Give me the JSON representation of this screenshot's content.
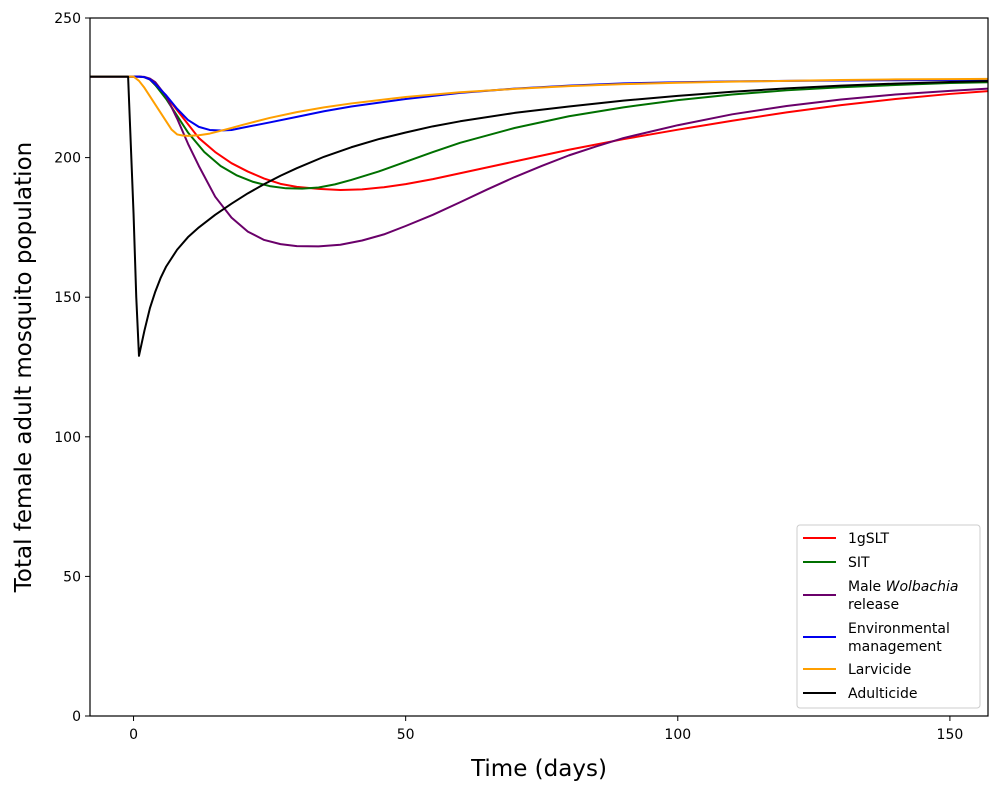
{
  "chart_data": {
    "type": "line",
    "title": "",
    "xlabel": "Time (days)",
    "ylabel": "Total female adult mosquito population",
    "xlim": [
      -8,
      157
    ],
    "ylim": [
      0,
      250
    ],
    "xticks": [
      0,
      50,
      100,
      150
    ],
    "yticks": [
      0,
      50,
      100,
      150,
      200,
      250
    ],
    "grid": false,
    "legend_position": "bottom-right",
    "series": [
      {
        "name": "1gSLT",
        "color": "#ff0000",
        "points": [
          [
            -8,
            229
          ],
          [
            0,
            229
          ],
          [
            1,
            229
          ],
          [
            2,
            228.8
          ],
          [
            3,
            228
          ],
          [
            4,
            226
          ],
          [
            6,
            222
          ],
          [
            8,
            217
          ],
          [
            10,
            212
          ],
          [
            12,
            207
          ],
          [
            15,
            202
          ],
          [
            18,
            198
          ],
          [
            21,
            195
          ],
          [
            24,
            192.5
          ],
          [
            27,
            190.6
          ],
          [
            30,
            189.5
          ],
          [
            34,
            188.8
          ],
          [
            38,
            188.4
          ],
          [
            42,
            188.6
          ],
          [
            46,
            189.4
          ],
          [
            50,
            190.5
          ],
          [
            55,
            192.3
          ],
          [
            60,
            194.4
          ],
          [
            65,
            196.5
          ],
          [
            70,
            198.6
          ],
          [
            80,
            202.8
          ],
          [
            90,
            206.6
          ],
          [
            100,
            210
          ],
          [
            110,
            213.2
          ],
          [
            120,
            216.2
          ],
          [
            130,
            218.8
          ],
          [
            140,
            221
          ],
          [
            150,
            222.8
          ],
          [
            157,
            223.8
          ]
        ]
      },
      {
        "name": "SIT",
        "color": "#007000",
        "points": [
          [
            -8,
            229
          ],
          [
            0,
            229
          ],
          [
            1,
            229
          ],
          [
            2,
            228.8
          ],
          [
            3,
            228
          ],
          [
            4,
            226
          ],
          [
            6,
            221
          ],
          [
            8,
            215
          ],
          [
            10,
            209
          ],
          [
            13,
            202
          ],
          [
            16,
            197
          ],
          [
            19,
            193.6
          ],
          [
            22,
            191.3
          ],
          [
            25,
            189.8
          ],
          [
            28,
            189
          ],
          [
            31,
            188.9
          ],
          [
            34,
            189.3
          ],
          [
            37,
            190.4
          ],
          [
            40,
            192
          ],
          [
            45,
            195
          ],
          [
            50,
            198.5
          ],
          [
            55,
            202
          ],
          [
            60,
            205.3
          ],
          [
            70,
            210.6
          ],
          [
            80,
            214.8
          ],
          [
            90,
            218
          ],
          [
            100,
            220.6
          ],
          [
            110,
            222.6
          ],
          [
            120,
            224.1
          ],
          [
            130,
            225.2
          ],
          [
            140,
            226
          ],
          [
            150,
            226.7
          ],
          [
            157,
            227
          ]
        ]
      },
      {
        "name": "Male Wolbachia release",
        "name_plain": "Male ",
        "name_italic": "Wolbachia",
        "name_line2": "release",
        "color": "#6a006a",
        "points": [
          [
            -8,
            229
          ],
          [
            0,
            229
          ],
          [
            1,
            229
          ],
          [
            2,
            228.9
          ],
          [
            3,
            228.3
          ],
          [
            4,
            227
          ],
          [
            6,
            222
          ],
          [
            8,
            214
          ],
          [
            10,
            205
          ],
          [
            12,
            197
          ],
          [
            15,
            186
          ],
          [
            18,
            178.5
          ],
          [
            21,
            173.5
          ],
          [
            24,
            170.5
          ],
          [
            27,
            169
          ],
          [
            30,
            168.3
          ],
          [
            34,
            168.2
          ],
          [
            38,
            168.8
          ],
          [
            42,
            170.3
          ],
          [
            46,
            172.5
          ],
          [
            50,
            175.5
          ],
          [
            55,
            179.5
          ],
          [
            60,
            184
          ],
          [
            65,
            188.6
          ],
          [
            70,
            193
          ],
          [
            75,
            197
          ],
          [
            80,
            200.8
          ],
          [
            85,
            204
          ],
          [
            90,
            207
          ],
          [
            100,
            211.6
          ],
          [
            110,
            215.5
          ],
          [
            120,
            218.5
          ],
          [
            130,
            220.8
          ],
          [
            140,
            222.6
          ],
          [
            150,
            223.9
          ],
          [
            157,
            224.7
          ]
        ]
      },
      {
        "name": "Environmental management",
        "name_line1": "Environmental",
        "name_line2": "management",
        "color": "#0000ee",
        "points": [
          [
            -8,
            229
          ],
          [
            0,
            229
          ],
          [
            1,
            229
          ],
          [
            2,
            228.8
          ],
          [
            3,
            228
          ],
          [
            4,
            226.3
          ],
          [
            6,
            222.3
          ],
          [
            8,
            217.5
          ],
          [
            10,
            213.5
          ],
          [
            12,
            211
          ],
          [
            14,
            209.9
          ],
          [
            16,
            209.7
          ],
          [
            18,
            209.9
          ],
          [
            20,
            210.7
          ],
          [
            25,
            212.6
          ],
          [
            30,
            214.6
          ],
          [
            35,
            216.6
          ],
          [
            40,
            218.3
          ],
          [
            50,
            221
          ],
          [
            60,
            223.2
          ],
          [
            70,
            224.7
          ],
          [
            80,
            225.8
          ],
          [
            90,
            226.6
          ],
          [
            100,
            227
          ],
          [
            110,
            227.3
          ],
          [
            120,
            227.5
          ],
          [
            130,
            227.6
          ],
          [
            140,
            227.7
          ],
          [
            150,
            227.8
          ],
          [
            157,
            227.9
          ]
        ]
      },
      {
        "name": "Larvicide",
        "color": "#ff9f00",
        "points": [
          [
            -8,
            229
          ],
          [
            0,
            229
          ],
          [
            1,
            227.5
          ],
          [
            2,
            225
          ],
          [
            3,
            222
          ],
          [
            4,
            219
          ],
          [
            5,
            216
          ],
          [
            6,
            213
          ],
          [
            7,
            210
          ],
          [
            8,
            208.3
          ],
          [
            9,
            207.9
          ],
          [
            10,
            207.8
          ],
          [
            12,
            208
          ],
          [
            14,
            208.6
          ],
          [
            16,
            209.6
          ],
          [
            18,
            210.6
          ],
          [
            20,
            211.7
          ],
          [
            25,
            214.2
          ],
          [
            30,
            216.3
          ],
          [
            35,
            218
          ],
          [
            40,
            219.4
          ],
          [
            50,
            221.7
          ],
          [
            60,
            223.4
          ],
          [
            70,
            224.6
          ],
          [
            80,
            225.6
          ],
          [
            90,
            226.3
          ],
          [
            100,
            226.8
          ],
          [
            110,
            227.2
          ],
          [
            120,
            227.5
          ],
          [
            130,
            227.8
          ],
          [
            140,
            228
          ],
          [
            150,
            228.1
          ],
          [
            157,
            228.2
          ]
        ]
      },
      {
        "name": "Adulticide",
        "color": "#000000",
        "points": [
          [
            -8,
            229
          ],
          [
            -1,
            229
          ],
          [
            0,
            180
          ],
          [
            0.5,
            150
          ],
          [
            1,
            129
          ],
          [
            2,
            138
          ],
          [
            3,
            146
          ],
          [
            4,
            152
          ],
          [
            5,
            157
          ],
          [
            6,
            161
          ],
          [
            8,
            167
          ],
          [
            10,
            171.5
          ],
          [
            12,
            175
          ],
          [
            15,
            179.5
          ],
          [
            18,
            183.5
          ],
          [
            21,
            187.2
          ],
          [
            24,
            190.5
          ],
          [
            27,
            193.5
          ],
          [
            30,
            196.2
          ],
          [
            35,
            200.3
          ],
          [
            40,
            203.7
          ],
          [
            45,
            206.6
          ],
          [
            50,
            209
          ],
          [
            55,
            211.2
          ],
          [
            60,
            213
          ],
          [
            70,
            216
          ],
          [
            80,
            218.3
          ],
          [
            90,
            220.4
          ],
          [
            100,
            222.1
          ],
          [
            110,
            223.6
          ],
          [
            120,
            224.8
          ],
          [
            130,
            225.8
          ],
          [
            140,
            226.5
          ],
          [
            150,
            227.1
          ],
          [
            157,
            227.4
          ]
        ]
      }
    ]
  }
}
